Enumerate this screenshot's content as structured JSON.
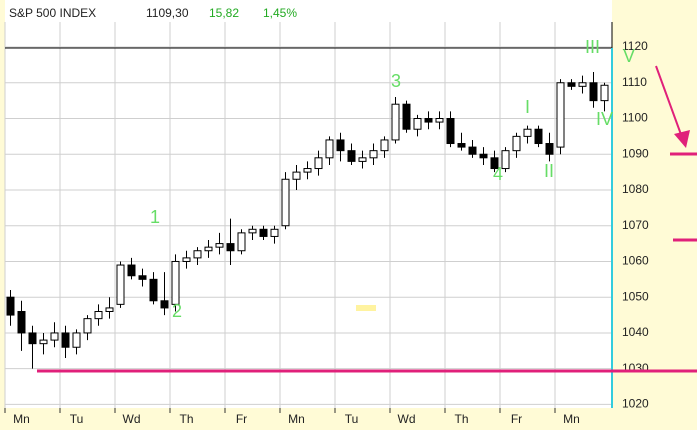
{
  "chart_data": {
    "type": "candlestick",
    "title": "S&P 500 INDEX",
    "last": "1109,30",
    "change": "15,82",
    "change_pct": "1,45%",
    "categories": [
      null,
      "Mn",
      null,
      null,
      null,
      null,
      "Tu",
      null,
      null,
      null,
      null,
      "Wd",
      null,
      null,
      null,
      null,
      "Th",
      null,
      null,
      null,
      null,
      "Fr",
      null,
      null,
      null,
      null,
      "Mn",
      null,
      null,
      null,
      null,
      "Tu",
      null,
      null,
      null,
      null,
      "Wd",
      null,
      null,
      null,
      null,
      "Th",
      null,
      null,
      null,
      null,
      "Fr",
      null,
      null,
      null,
      null,
      "Mn",
      null,
      null,
      null
    ],
    "open": [
      1050,
      1046,
      1040,
      1037,
      1038,
      1040,
      1036,
      1040,
      1044,
      1046,
      1048,
      1059,
      1056,
      1055,
      1049,
      1048,
      1060,
      1061,
      1063,
      1064,
      1065,
      1063,
      1068,
      1069,
      1067,
      1070,
      1083,
      1085,
      1086,
      1089,
      1094,
      1091,
      1088,
      1089,
      1091,
      1094,
      1104,
      1097,
      1100,
      1099,
      1100,
      1093,
      1092,
      1090,
      1089,
      1086,
      1091,
      1095,
      1097,
      1093,
      1092,
      1110,
      1109,
      1110,
      1105
    ],
    "high": [
      1052,
      1049,
      1042,
      1040,
      1043,
      1042,
      1041,
      1045,
      1048,
      1050,
      1060,
      1061,
      1058,
      1057,
      1057,
      1062,
      1063,
      1064,
      1066,
      1068,
      1072,
      1069,
      1070,
      1070,
      1070,
      1085,
      1087,
      1088,
      1091,
      1095,
      1096,
      1093,
      1091,
      1093,
      1095,
      1106,
      1105,
      1101,
      1102,
      1102,
      1102,
      1096,
      1094,
      1092,
      1091,
      1092,
      1096,
      1098,
      1098,
      1096,
      1111,
      1111,
      1112,
      1113,
      1110
    ],
    "low": [
      1042,
      1035,
      1030,
      1034,
      1036,
      1033,
      1034,
      1038,
      1042,
      1044,
      1047,
      1055,
      1053,
      1048,
      1045,
      1046,
      1058,
      1059,
      1061,
      1062,
      1059,
      1062,
      1066,
      1066,
      1065,
      1069,
      1080,
      1083,
      1084,
      1087,
      1088,
      1087,
      1086,
      1087,
      1089,
      1093,
      1096,
      1095,
      1097,
      1097,
      1092,
      1091,
      1089,
      1087,
      1085,
      1085,
      1089,
      1093,
      1092,
      1088,
      1090,
      1108,
      1107,
      1103,
      1102
    ],
    "close": [
      1045,
      1040,
      1037,
      1038,
      1040,
      1036,
      1040,
      1044,
      1046,
      1047,
      1059,
      1056,
      1055,
      1049,
      1047,
      1060,
      1061,
      1063,
      1064,
      1065,
      1063,
      1068,
      1069,
      1067,
      1069,
      1083,
      1085,
      1086,
      1089,
      1094,
      1091,
      1088,
      1089,
      1091,
      1094,
      1104,
      1097,
      1100,
      1099,
      1100,
      1093,
      1092,
      1090,
      1089,
      1086,
      1091,
      1095,
      1097,
      1093,
      1090,
      1110,
      1109,
      1110,
      1105,
      1109.3
    ],
    "up_color": "#ffffff",
    "down_color": "#000000",
    "ylim": [
      1019,
      1127
    ],
    "yticks": [
      1020,
      1030,
      1040,
      1050,
      1060,
      1070,
      1080,
      1090,
      1100,
      1110,
      1120
    ],
    "grid": true,
    "wave_labels": [
      "1",
      "2",
      "3",
      "4",
      "I",
      "II",
      "III",
      "IV",
      "V"
    ]
  }
}
